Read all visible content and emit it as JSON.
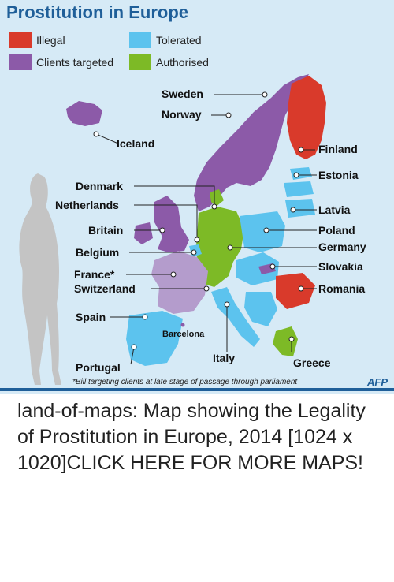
{
  "map": {
    "title": "Prostitution in Europe",
    "legend": [
      {
        "label": "Illegal",
        "color": "#d93a2b"
      },
      {
        "label": "Tolerated",
        "color": "#5cc3ee"
      },
      {
        "label": "Clients targeted",
        "color": "#8c5aa8"
      },
      {
        "label": "Authorised",
        "color": "#7dba26"
      }
    ],
    "countries": {
      "sweden": "Sweden",
      "norway": "Norway",
      "iceland": "Iceland",
      "finland": "Finland",
      "estonia": "Estonia",
      "denmark": "Denmark",
      "netherlands": "Netherlands",
      "latvia": "Latvia",
      "britain": "Britain",
      "poland": "Poland",
      "germany": "Germany",
      "belgium": "Belgium",
      "slovakia": "Slovakia",
      "france": "France*",
      "switzerland": "Switzerland",
      "romania": "Romania",
      "spain": "Spain",
      "barcelona": "Barcelona",
      "italy": "Italy",
      "greece": "Greece",
      "portugal": "Portugal"
    },
    "footnote": "*Bill targeting clients at late stage of passage through parliament",
    "credit": "AFP"
  },
  "caption": "land-of-maps: Map showing the Legality of Prostitution in Europe, 2014 [1024 x 1020]CLICK HERE FOR MORE MAPS!"
}
